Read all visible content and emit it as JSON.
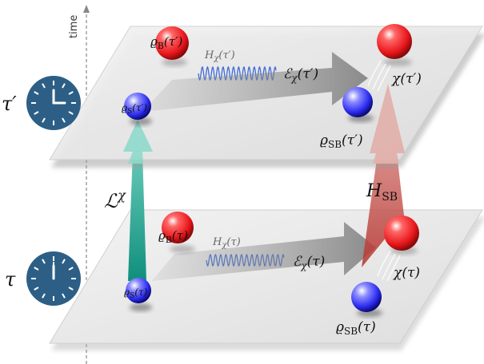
{
  "axis": {
    "label": "time"
  },
  "clocks": [
    {
      "label": "τ′",
      "hands": "3:00"
    },
    {
      "label": "τ",
      "hands": "12:00"
    }
  ],
  "top": {
    "rhoB": {
      "sym": "ϱ",
      "sub": "B",
      "arg": "(τ′)"
    },
    "rhoS": {
      "sym": "ϱ",
      "sub": "S",
      "arg": "(τ′)"
    },
    "Hchi": {
      "sym": "H",
      "sub": "χ",
      "arg": "(τ′)"
    },
    "Echi": {
      "sym": "ℰ",
      "sub": "χ",
      "arg": "(τ′)"
    },
    "chi": {
      "sym": "χ",
      "arg": "(τ′)"
    },
    "rhoSB": {
      "sym": "ϱ",
      "sub": "SB",
      "arg": "(τ′)"
    }
  },
  "bottom": {
    "rhoB": {
      "sym": "ϱ",
      "sub": "B",
      "arg": "(τ)"
    },
    "rhoS": {
      "sym": "ϱ",
      "sub": "S",
      "arg": "(τ)"
    },
    "Hchi": {
      "sym": "H",
      "sub": "χ",
      "arg": "(τ)"
    },
    "Echi": {
      "sym": "ℰ",
      "sub": "χ",
      "arg": "(τ)"
    },
    "chi": {
      "sym": "χ",
      "arg": "(τ)"
    },
    "rhoSB": {
      "sym": "ϱ",
      "sub": "SB",
      "arg": "(τ)"
    }
  },
  "links": {
    "L": {
      "sym": "ℒ",
      "sup": "χ"
    },
    "HSB": {
      "sym": "H",
      "sub": "SB"
    }
  },
  "colors": {
    "plane": "#e9e9e9",
    "clock": "#2d5f86",
    "red_ball": "#e8161b",
    "blue_ball": "#2c2cf0",
    "teal_arrow": "#12a08c",
    "red_arrow": "#c44a44",
    "wave": "#3f6bd6"
  }
}
